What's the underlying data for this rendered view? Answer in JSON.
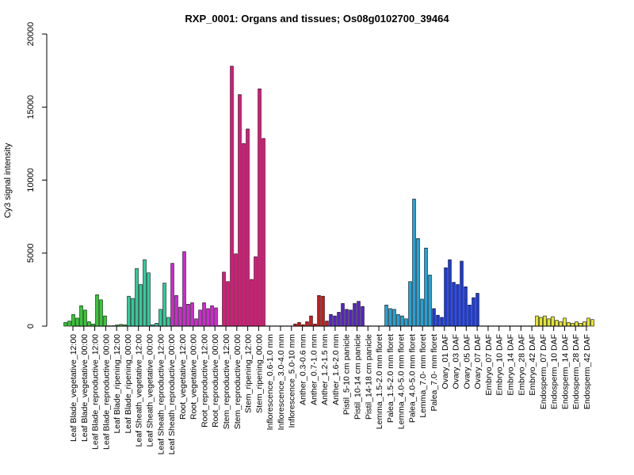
{
  "chart_data": {
    "type": "bar",
    "title": "RXP_0001: Organs and tissues; Os08g0102700_39464",
    "ylabel": "Cy3 signal intensity",
    "xlabel": "",
    "ylim": [
      0,
      20000
    ],
    "yticks": [
      0,
      5000,
      10000,
      15000,
      20000
    ],
    "grid": false,
    "groups": [
      {
        "label": "Leaf Blade_vegetative_12:00",
        "color": "#2ecc2e",
        "values": [
          250,
          350
        ]
      },
      {
        "label": "Leaf Blade_vegetative_00:00",
        "color": "#2ecc2e",
        "values": [
          800,
          550,
          1400
        ]
      },
      {
        "label": "Leaf Blade_reproductive_12:00",
        "color": "#2ecc2e",
        "values": [
          1100,
          300,
          150
        ]
      },
      {
        "label": "Leaf Blade_reproductive_00:00",
        "color": "#2ecc2e",
        "values": [
          2150,
          1800,
          700
        ]
      },
      {
        "label": "Leaf Blade_ripening_12:00",
        "color": "#2ecc2e",
        "values": [
          30,
          30
        ]
      },
      {
        "label": "Leaf Blade_ripening_00:00",
        "color": "#2ecc2e",
        "values": [
          80,
          120,
          100
        ]
      },
      {
        "label": "Leaf Sheath_vegetative_12:00",
        "color": "#1fd49a",
        "values": [
          2050,
          1900,
          3950
        ]
      },
      {
        "label": "Leaf Sheath_vegetative_00:00",
        "color": "#1fd49a",
        "values": [
          2850,
          4550,
          3650
        ]
      },
      {
        "label": "Leaf Sheath_reproductive_12:00",
        "color": "#1fd49a",
        "values": [
          100,
          200
        ]
      },
      {
        "label": "Leaf Sheath_reproductive_00:00",
        "color": "#1fd49a",
        "values": [
          1150,
          2950,
          600
        ]
      },
      {
        "label": "Root_vegetative_12:00",
        "color": "#dd1fdd",
        "values": [
          4300,
          2100,
          1300
        ]
      },
      {
        "label": "Root_vegetative_00:00",
        "color": "#dd1fdd",
        "values": [
          5100,
          1500,
          1600
        ]
      },
      {
        "label": "Root_reproductive_12:00",
        "color": "#dd1fdd",
        "values": [
          500,
          1100,
          1600
        ]
      },
      {
        "label": "Root_reproductive_00:00",
        "color": "#dd1fdd",
        "values": [
          1200,
          1400,
          1250
        ]
      },
      {
        "label": "Stem_reproductive_12:00",
        "color": "#e0157a",
        "values": [
          50,
          3700,
          3050
        ]
      },
      {
        "label": "Stem_reproductive_00:00",
        "color": "#e0157a",
        "values": [
          17800,
          4950,
          15850
        ]
      },
      {
        "label": "Stem_ripening_12:00",
        "color": "#e0157a",
        "values": [
          12500,
          13500,
          3200
        ]
      },
      {
        "label": "Stem_ripening_00:00",
        "color": "#e0157a",
        "values": [
          4750,
          16250,
          12850
        ]
      },
      {
        "label": "Inflorescence_0.6-1.0 mm",
        "color": "#d01818",
        "values": [
          20,
          20
        ]
      },
      {
        "label": "Inflorescence_3.0-4.0 mm",
        "color": "#d01818",
        "values": [
          20,
          20,
          20
        ]
      },
      {
        "label": "Inflorescence_5.0-10 mm",
        "color": "#d01818",
        "values": [
          20,
          20
        ]
      },
      {
        "label": "Anther_0.3-0.6 mm",
        "color": "#d01818",
        "values": [
          150,
          250,
          100
        ]
      },
      {
        "label": "Anther_0.7-1.0 mm",
        "color": "#d01818",
        "values": [
          300,
          700,
          150
        ]
      },
      {
        "label": "Anther_1.2-1.5 mm",
        "color": "#d01818",
        "values": [
          2100,
          2050,
          350
        ]
      },
      {
        "label": "Anther_1.6-2.0 mm",
        "color": "#5a1fd6",
        "values": [
          800,
          700,
          950
        ]
      },
      {
        "label": "Pistil_5-10 cm panicle",
        "color": "#5a1fd6",
        "values": [
          1550,
          1150,
          1100
        ]
      },
      {
        "label": "Pistil_10-14 cm panicle",
        "color": "#5a1fd6",
        "values": [
          1550,
          1700,
          1350
        ]
      },
      {
        "label": "Pistil_14-18 cm panicle",
        "color": "#5a1fd6",
        "values": [
          20,
          20,
          20
        ]
      },
      {
        "label": "Lemma_1.5-2.0 mm floret",
        "color": "#1aa6e0",
        "values": [
          20,
          20
        ]
      },
      {
        "label": "Palea_1.5-2.0 mm floret",
        "color": "#1aa6e0",
        "values": [
          1450,
          1200,
          1150
        ]
      },
      {
        "label": "Lemma_4.0-5.0 mm floret",
        "color": "#1aa6e0",
        "values": [
          800,
          700,
          500
        ]
      },
      {
        "label": "Palea_4.0-5.0 mm floret",
        "color": "#1aa6e0",
        "values": [
          3050,
          8700,
          6000
        ]
      },
      {
        "label": "Lemma_7.0- mm floret",
        "color": "#1aa6e0",
        "values": [
          1850,
          5350,
          3500
        ]
      },
      {
        "label": "Palea_7.0- mm floret",
        "color": "#1a3ae0",
        "values": [
          1200,
          750,
          600
        ]
      },
      {
        "label": "Ovary_01 DAF",
        "color": "#1a3ae0",
        "values": [
          4000,
          4550,
          3000
        ]
      },
      {
        "label": "Ovary_03 DAF",
        "color": "#1a3ae0",
        "values": [
          2850,
          4450,
          2700
        ]
      },
      {
        "label": "Ovary_05 DAF",
        "color": "#1a3ae0",
        "values": [
          1450,
          1950,
          2250
        ]
      },
      {
        "label": "Ovary_07 DAF",
        "color": "#1a3ae0",
        "values": [
          20,
          20
        ]
      },
      {
        "label": "Embryo_07 DAF",
        "color": "#e6e61a",
        "values": [
          20,
          20
        ]
      },
      {
        "label": "Embryo_10 DAF",
        "color": "#e6e61a",
        "values": [
          20,
          20
        ]
      },
      {
        "label": "Embryo_14 DAF",
        "color": "#e6e61a",
        "values": [
          20,
          20,
          20
        ]
      },
      {
        "label": "Embryo_28 DAF",
        "color": "#e6e61a",
        "values": [
          20,
          20
        ]
      },
      {
        "label": "Embryo_42 DAF",
        "color": "#e6e61a",
        "values": [
          20,
          20,
          20
        ]
      },
      {
        "label": "Endosperm_07 DAF",
        "color": "#e6e61a",
        "values": [
          700,
          600,
          700
        ]
      },
      {
        "label": "Endosperm_10 DAF",
        "color": "#e6e61a",
        "values": [
          500,
          650,
          400
        ]
      },
      {
        "label": "Endosperm_14 DAF",
        "color": "#e6e61a",
        "values": [
          300,
          550,
          250
        ]
      },
      {
        "label": "Endosperm_28 DAF",
        "color": "#e6e61a",
        "values": [
          200,
          300,
          200
        ]
      },
      {
        "label": "Endosperm_42 DAF",
        "color": "#e6e61a",
        "values": [
          300,
          550,
          450
        ]
      }
    ]
  }
}
